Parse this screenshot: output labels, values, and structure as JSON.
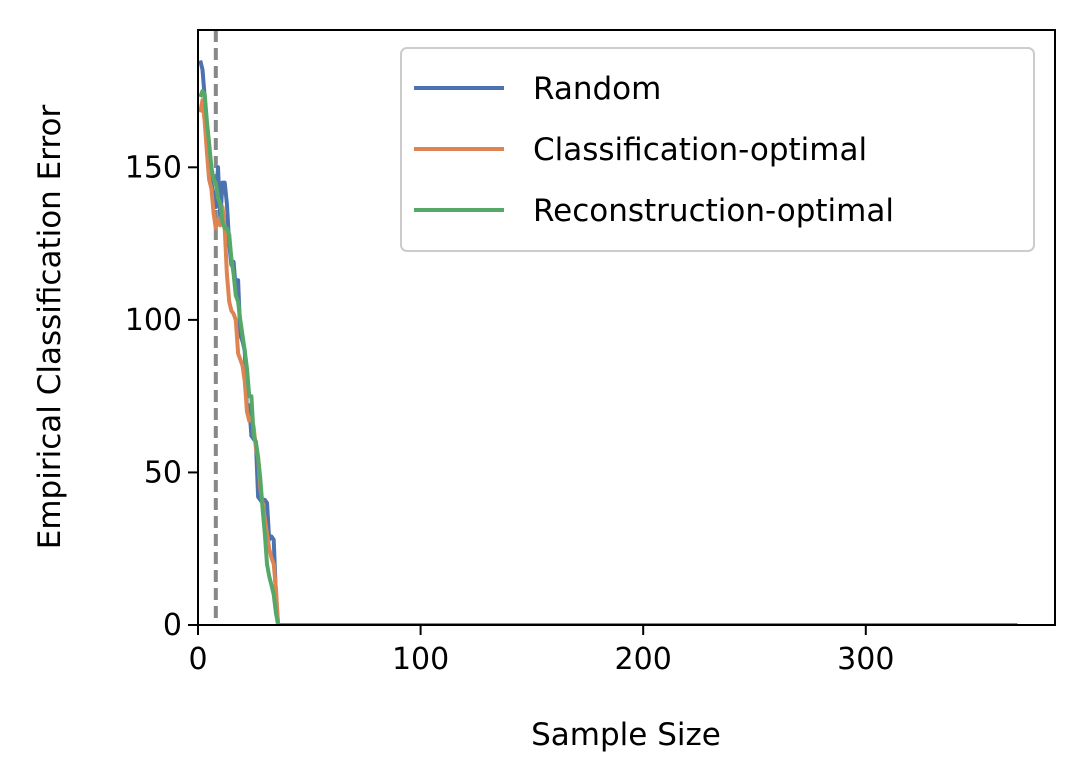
{
  "chart_data": {
    "type": "line",
    "xlabel": "Sample Size",
    "ylabel": "Empirical Classification Error",
    "xlim": [
      0,
      385
    ],
    "ylim": [
      0,
      195
    ],
    "xticks": [
      0,
      100,
      200,
      300
    ],
    "yticks": [
      0,
      50,
      100,
      150
    ],
    "grid": false,
    "legend_position": "top-right",
    "reference_line": {
      "orientation": "vertical",
      "x": 8,
      "style": "dashed",
      "color": "#888888"
    },
    "series": [
      {
        "name": "Random",
        "color": "#4c72b0",
        "x": [
          1,
          2,
          3,
          4,
          5,
          6,
          7,
          8,
          9,
          10,
          11,
          12,
          13,
          14,
          15,
          16,
          17,
          18,
          19,
          20,
          21,
          22,
          23,
          24,
          25,
          26,
          27,
          28,
          29,
          30,
          31,
          32,
          33,
          34,
          35,
          36,
          37,
          368
        ],
        "y": [
          185,
          182,
          173,
          160,
          152,
          145,
          140,
          137,
          150,
          133,
          145,
          145,
          138,
          125,
          118,
          119,
          110,
          113,
          95,
          93,
          90,
          70,
          72,
          62,
          61,
          60,
          42,
          41,
          40,
          41,
          40,
          28,
          29,
          28,
          10,
          0,
          0,
          0
        ]
      },
      {
        "name": "Classification-optimal",
        "color": "#dd8452",
        "x": [
          1,
          2,
          3,
          4,
          5,
          6,
          7,
          8,
          9,
          10,
          11,
          12,
          13,
          14,
          15,
          16,
          17,
          18,
          19,
          20,
          21,
          22,
          23,
          24,
          25,
          26,
          27,
          28,
          29,
          30,
          31,
          32,
          33,
          34,
          35,
          36,
          37,
          368
        ],
        "y": [
          168,
          172,
          165,
          155,
          146,
          143,
          135,
          130,
          133,
          131,
          137,
          130,
          115,
          106,
          103,
          102,
          100,
          89,
          87,
          85,
          80,
          70,
          67,
          68,
          65,
          58,
          55,
          45,
          40,
          35,
          30,
          25,
          22,
          20,
          12,
          0,
          0,
          0
        ]
      },
      {
        "name": "Reconstruction-optimal",
        "color": "#55a868",
        "x": [
          1,
          2,
          3,
          4,
          5,
          6,
          7,
          8,
          9,
          10,
          11,
          12,
          13,
          14,
          15,
          16,
          17,
          18,
          19,
          20,
          21,
          22,
          23,
          24,
          25,
          26,
          27,
          28,
          29,
          30,
          31,
          32,
          33,
          34,
          35,
          36,
          37,
          368
        ],
        "y": [
          173,
          175,
          174,
          165,
          158,
          150,
          146,
          145,
          140,
          138,
          132,
          130,
          130,
          128,
          120,
          115,
          108,
          106,
          100,
          95,
          90,
          84,
          75,
          75,
          62,
          60,
          55,
          48,
          38,
          30,
          20,
          16,
          13,
          10,
          4,
          0,
          0,
          0
        ]
      }
    ]
  }
}
